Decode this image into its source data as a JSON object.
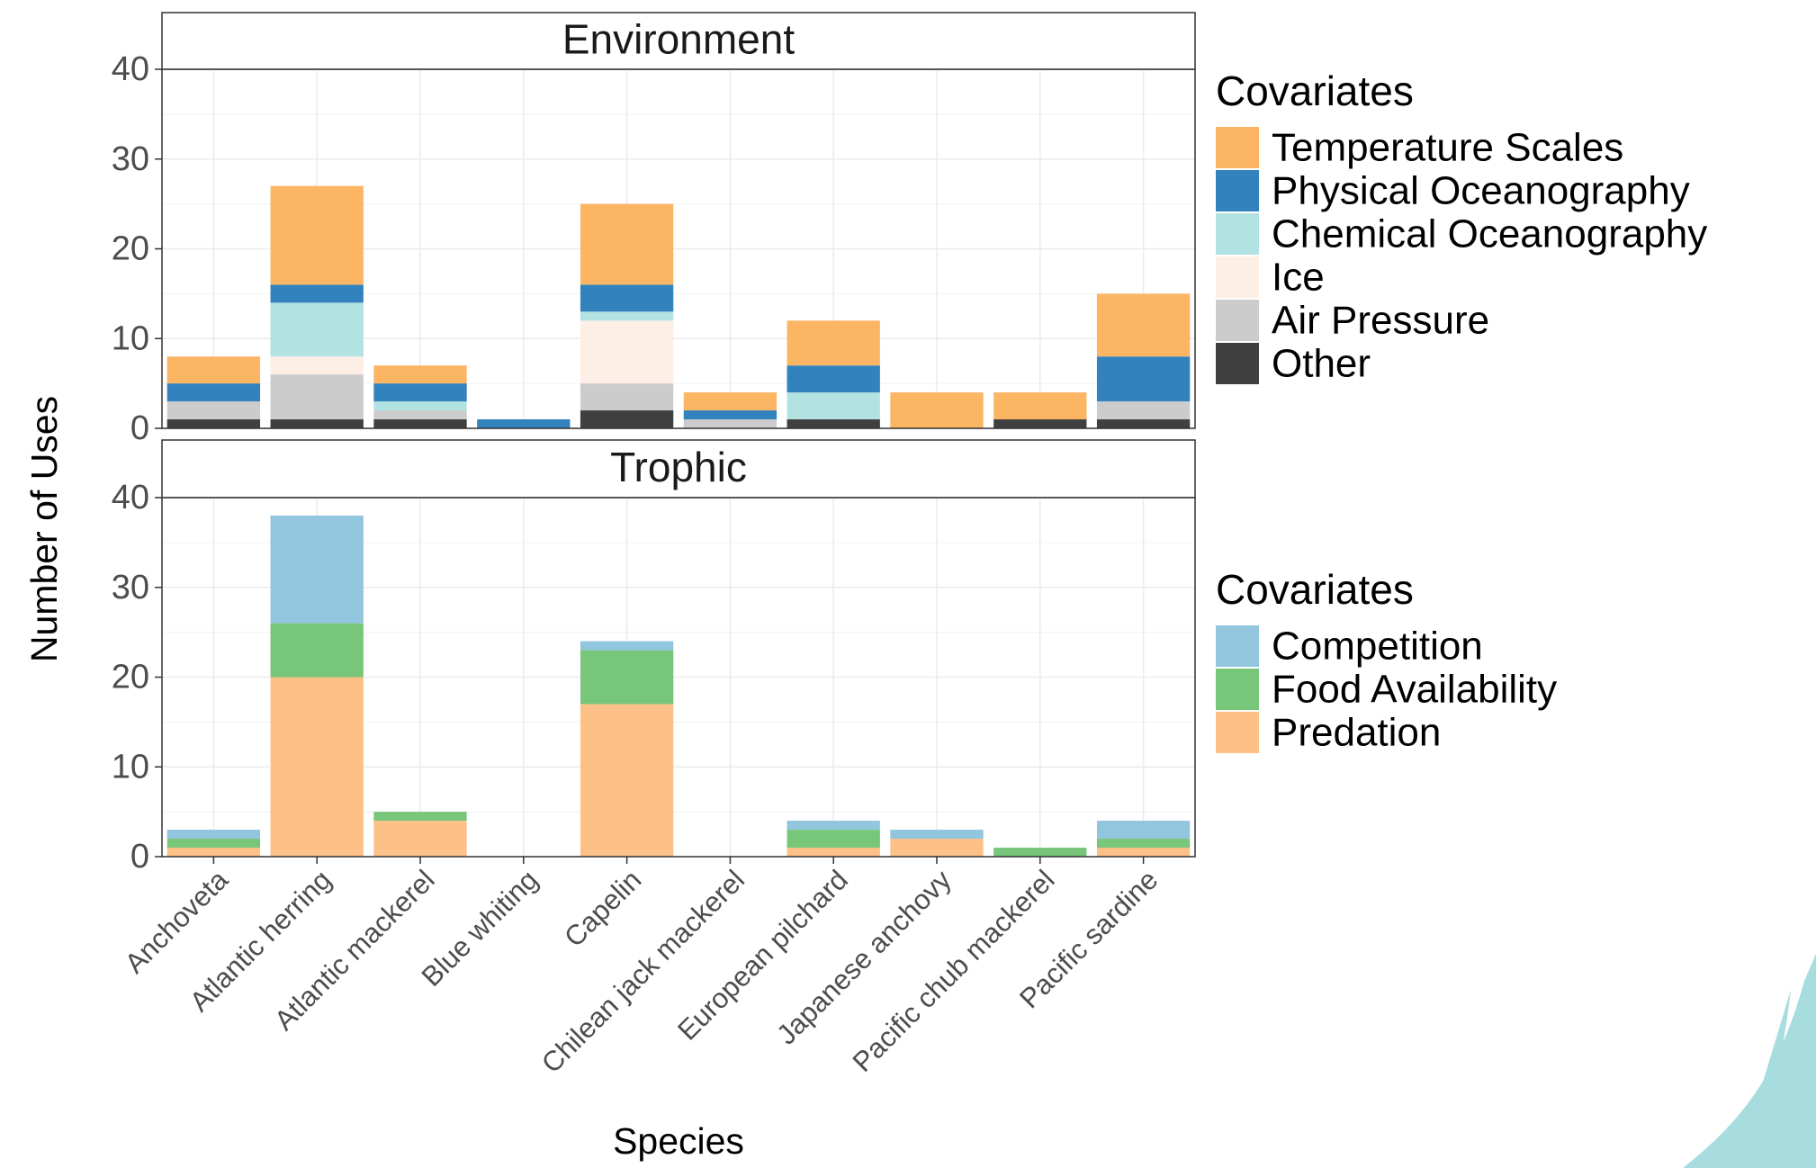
{
  "chart_data": [
    {
      "type": "bar",
      "stacked": true,
      "title": "Environment",
      "y_label": "Number of Uses",
      "legend_title": "Covariates",
      "categories": [
        "Anchoveta",
        "Atlantic herring",
        "Atlantic mackerel",
        "Blue whiting",
        "Capelin",
        "Chilean jack mackerel",
        "European pilchard",
        "Japanese anchovy",
        "Pacific chub mackerel",
        "Pacific sardine"
      ],
      "series": [
        {
          "name": "Temperature Scales",
          "color": "#fbb563",
          "values": [
            3,
            11,
            2,
            0,
            9,
            2,
            5,
            4,
            3,
            7
          ]
        },
        {
          "name": "Physical Oceanography",
          "color": "#3182bd",
          "values": [
            2,
            2,
            2,
            1,
            3,
            1,
            3,
            0,
            0,
            5
          ]
        },
        {
          "name": "Chemical Oceanography",
          "color": "#b2e2e2",
          "values": [
            0,
            6,
            1,
            0,
            1,
            0,
            3,
            0,
            0,
            0
          ]
        },
        {
          "name": "Ice",
          "color": "#fdeee6",
          "values": [
            0,
            2,
            0,
            0,
            7,
            0,
            0,
            0,
            0,
            0
          ]
        },
        {
          "name": "Air Pressure",
          "color": "#cccccc",
          "values": [
            2,
            5,
            1,
            0,
            3,
            1,
            0,
            0,
            0,
            2
          ]
        },
        {
          "name": "Other",
          "color": "#404040",
          "values": [
            1,
            1,
            1,
            0,
            2,
            0,
            1,
            0,
            1,
            1
          ]
        }
      ],
      "ylim": [
        0,
        40
      ],
      "yticks": [
        0,
        10,
        20,
        30,
        40
      ],
      "grid": true
    },
    {
      "type": "bar",
      "stacked": true,
      "title": "Trophic",
      "x_label": "Species",
      "legend_title": "Covariates",
      "categories": [
        "Anchoveta",
        "Atlantic herring",
        "Atlantic mackerel",
        "Blue whiting",
        "Capelin",
        "Chilean jack mackerel",
        "European pilchard",
        "Japanese anchovy",
        "Pacific chub mackerel",
        "Pacific sardine"
      ],
      "series": [
        {
          "name": "Competition",
          "color": "#92c5de",
          "values": [
            1,
            12,
            0,
            0,
            1,
            0,
            1,
            1,
            0,
            2
          ]
        },
        {
          "name": "Food Availability",
          "color": "#78c679",
          "values": [
            1,
            6,
            1,
            0,
            6,
            0,
            2,
            0,
            1,
            1
          ]
        },
        {
          "name": "Predation",
          "color": "#fdc086",
          "values": [
            1,
            20,
            4,
            0,
            17,
            0,
            1,
            2,
            0,
            1
          ]
        }
      ],
      "ylim": [
        0,
        40
      ],
      "yticks": [
        0,
        10,
        20,
        30,
        40
      ],
      "grid": true
    }
  ]
}
